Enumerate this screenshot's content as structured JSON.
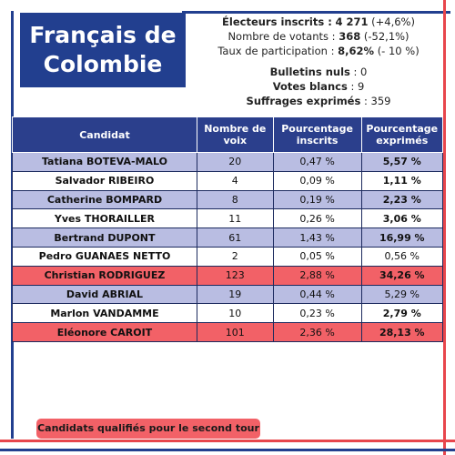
{
  "header": {
    "title_line1": "Français de",
    "title_line2": "Colombie"
  },
  "stats": [
    {
      "label": "Électeurs inscrits :",
      "value": "4 271",
      "extra": "(+4,6%)"
    },
    {
      "label": "Nombre de votants :",
      "value": "368",
      "extra": "(-52,1%)"
    },
    {
      "label": "Taux de participation :",
      "value": "8,62%",
      "extra": "(- 10 %)"
    },
    {
      "label": "Bulletins nuls",
      "value": ": 0"
    },
    {
      "label": "Votes blancs",
      "value": ": 9"
    },
    {
      "label": "Suffrages exprimés",
      "value": ": 359"
    }
  ],
  "table": {
    "headers": [
      "Candidat",
      "Nombre de voix",
      "Pourcentage inscrits",
      "Pourcentage exprimés"
    ],
    "rows": [
      [
        "Tatiana BOTEVA-MALO",
        "20",
        "0,47 %",
        "5,57 %"
      ],
      [
        "Salvador RIBEIRO",
        "4",
        "0,09 %",
        "1,11 %"
      ],
      [
        "Catherine BOMPARD",
        "8",
        "0,19 %",
        "2,23 %"
      ],
      [
        "Yves THORAILLER",
        "11",
        "0,26 %",
        "3,06 %"
      ],
      [
        "Bertrand DUPONT",
        "61",
        "1,43 %",
        "16,99 %"
      ],
      [
        "Pedro GUANAES NETTO",
        "2",
        "0,05 %",
        "0,56 %"
      ],
      [
        "Christian RODRIGUEZ",
        "123",
        "2,88 %",
        "34,26 %"
      ],
      [
        "David ABRIAL",
        "19",
        "0,44 %",
        "5,29 %"
      ],
      [
        "Marlon VANDAMME",
        "10",
        "0,23 %",
        "2,79 %"
      ],
      [
        "Eléonore CAROIT",
        "101",
        "2,36 %",
        "28,13 %"
      ]
    ]
  },
  "footer": "Candidats qualifiés pour le second tour"
}
